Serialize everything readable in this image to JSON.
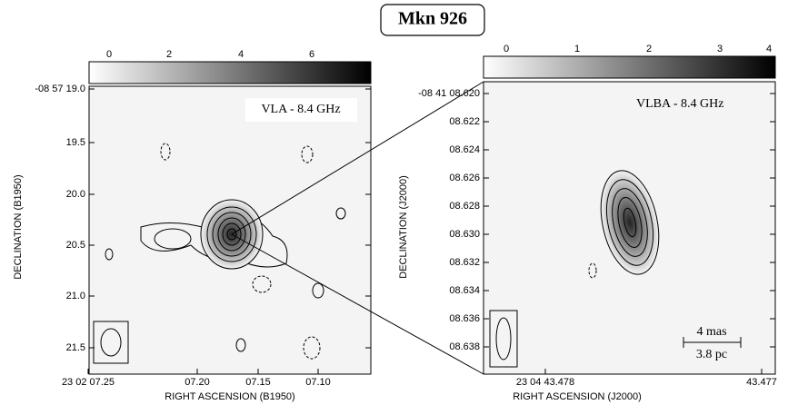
{
  "title": "Mkn 926",
  "panels": [
    {
      "annotation": "VLA - 8.4 GHz",
      "colorbar_ticks": [
        "0",
        "2",
        "4",
        "6"
      ],
      "y_ticks": [
        "-08 57 19.0",
        "19.5",
        "20.0",
        "20.5",
        "21.0",
        "21.5"
      ],
      "x_ticks": [
        "23 02 07.25",
        "07.20",
        "07.15",
        "07.10"
      ],
      "x_label": "RIGHT ASCENSION (B1950)",
      "y_label": "DECLINATION (B1950)"
    },
    {
      "annotation": "VLBA - 8.4 GHz",
      "colorbar_ticks": [
        "0",
        "1",
        "2",
        "3",
        "4"
      ],
      "y_ticks": [
        "-08 41 08.620",
        "08.622",
        "08.624",
        "08.626",
        "08.628",
        "08.630",
        "08.632",
        "08.634",
        "08.636",
        "08.638"
      ],
      "x_ticks": [
        "23 04 43.478",
        "43.477"
      ],
      "x_label": "RIGHT ASCENSION (J2000)",
      "y_label": "DECLINATION (J2000)",
      "scale_bar": [
        "4 mas",
        "3.8 pc"
      ]
    }
  ]
}
